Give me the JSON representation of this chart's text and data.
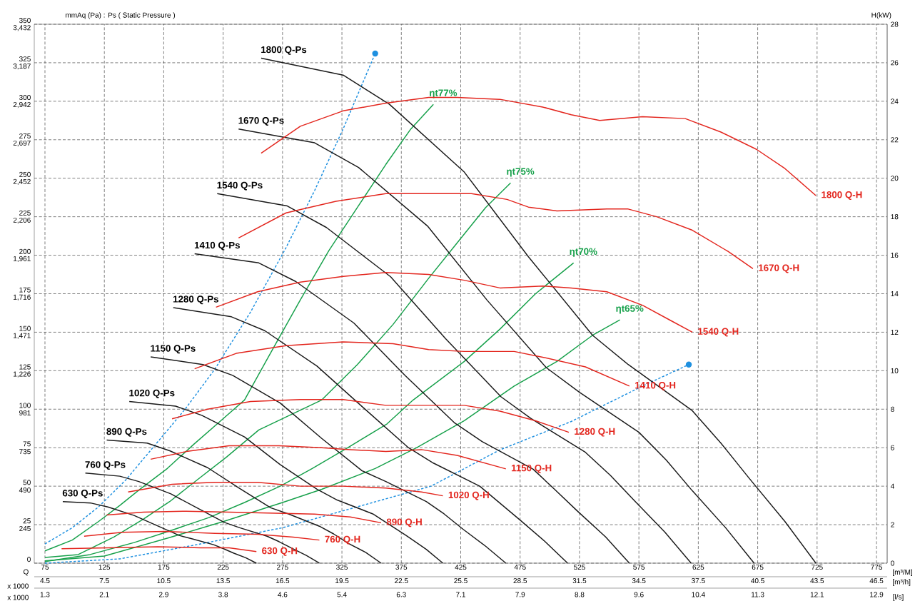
{
  "chart_data": {
    "type": "line",
    "ylabel": "mmAq (Pa) : Ps ( Static Pressure )",
    "y2label": "H(kW)",
    "xlabel": "[m³/M]",
    "x2label": "[m³/h]",
    "annotations": [
      "Q",
      "x 1000",
      "x 1000",
      "[l/s]",
      "1.3",
      "2.1",
      "2.9",
      "3.8",
      "4.6",
      "5.4",
      "6.3",
      "7.1",
      "7.9",
      "8.8",
      "9.6",
      "10.4",
      "11.3",
      "12.1",
      "12.9"
    ],
    "xlim": [
      66,
      784
    ],
    "xticks": [
      75,
      125,
      175,
      225,
      275,
      325,
      375,
      425,
      475,
      525,
      575,
      625,
      675,
      725,
      775
    ],
    "x2lim": [
      3.96,
      47.04
    ],
    "x2ticks": [
      4.5,
      7.5,
      10.5,
      13.5,
      16.5,
      19.5,
      22.5,
      25.5,
      28.5,
      31.5,
      34.5,
      37.5,
      40.5,
      43.5,
      46.5
    ],
    "ylim": [
      0,
      350
    ],
    "yticks": [
      0,
      25,
      50,
      75,
      100,
      125,
      150,
      175,
      200,
      225,
      250,
      275,
      300,
      325,
      350
    ],
    "y2lim": [
      0,
      28
    ],
    "y2ticks": [
      0,
      2,
      4,
      6,
      8,
      10,
      12,
      14,
      16,
      18,
      20,
      22,
      24,
      26,
      28
    ],
    "y3lim": [
      0,
      3432
    ],
    "y3ticks": [
      {
        "value": 245,
        "label": "245"
      },
      {
        "value": 490,
        "label": "490"
      },
      {
        "value": 735,
        "label": "735"
      },
      {
        "value": 981,
        "label": "981"
      },
      {
        "value": 1226,
        "label": "1,226"
      },
      {
        "value": 1471,
        "label": "1,471"
      },
      {
        "value": 1716,
        "label": "1,716"
      },
      {
        "value": 1961,
        "label": "1,961"
      },
      {
        "value": 2206,
        "label": "2,206"
      },
      {
        "value": 2452,
        "label": "2,452"
      },
      {
        "value": 2697,
        "label": "2,697"
      },
      {
        "value": 2942,
        "label": "2,942"
      },
      {
        "value": 3187,
        "label": "3,187"
      },
      {
        "value": 3432,
        "label": "3,432"
      }
    ],
    "grid": true,
    "series": [
      {
        "name": "ηt77%",
        "color": "#16a04a",
        "x": [
          75,
          98,
          120,
          138,
          155,
          178,
          200,
          223,
          243,
          266,
          290,
          314,
          338,
          362,
          383,
          402
        ],
        "values": [
          8,
          15,
          27,
          37.5,
          48,
          61.5,
          77,
          92.5,
          106,
          138,
          171,
          203,
          231,
          259,
          282,
          298
        ]
      },
      {
        "name": "ηt75%",
        "color": "#16a04a",
        "x": [
          75,
          103,
          133,
          158,
          180,
          203,
          228,
          255,
          308,
          338,
          368,
          398,
          422,
          446,
          467
        ],
        "values": [
          3.7,
          5.6,
          17,
          28.7,
          40,
          54,
          69,
          86.5,
          106,
          129,
          155,
          185,
          208,
          231,
          247
        ]
      },
      {
        "name": "ηt70%",
        "color": "#16a04a",
        "x": [
          75,
          113,
          150,
          178,
          213,
          243,
          273,
          300,
          330,
          363,
          385,
          428,
          458,
          488,
          520
        ],
        "values": [
          1,
          5.6,
          13.4,
          20.4,
          29.6,
          39.4,
          50,
          61.5,
          75,
          90.5,
          106,
          131,
          152,
          175,
          195
        ]
      },
      {
        "name": "ηt65%",
        "color": "#16a04a",
        "x": [
          75,
          125,
          178,
          225,
          275,
          308,
          353,
          388,
          428,
          470,
          506,
          536,
          559
        ],
        "values": [
          1.5,
          4.6,
          16.2,
          27,
          39.4,
          48,
          61.5,
          75,
          92.5,
          115,
          131,
          148,
          158
        ]
      },
      {
        "color": "#1e90e0",
        "line_style": "dashed",
        "x": [
          75,
          98,
          120,
          143,
          168,
          193,
          218,
          248,
          278,
          302,
          326,
          353
        ],
        "values": [
          12.5,
          23,
          36.5,
          54,
          77,
          100,
          126,
          163,
          205,
          242,
          282,
          331
        ]
      },
      {
        "type": "scatter",
        "color": "#1e90e0",
        "marker": "circle",
        "x": [
          353
        ],
        "values": [
          331
        ]
      },
      {
        "type": "scatter",
        "color": "#1e90e0",
        "marker": "circle",
        "x": [
          617
        ],
        "values": [
          129
        ]
      },
      {
        "color": "#1e90e0",
        "line_style": "dashed",
        "x": [
          75,
          138,
          200,
          275,
          338,
          400,
          458,
          518,
          578,
          617
        ],
        "values": [
          0,
          2.8,
          11.6,
          23,
          36.6,
          50,
          73.6,
          92,
          115,
          129
        ]
      },
      {
        "name": "1800 Q-H",
        "color": "#e3261e",
        "axis": "y2",
        "x": [
          257,
          290,
          326,
          362,
          398,
          422,
          458,
          494,
          518,
          542,
          578,
          614,
          644,
          674,
          698,
          724
        ],
        "values": [
          21.3,
          22.7,
          23.5,
          23.9,
          24.2,
          24.2,
          24.1,
          23.7,
          23.3,
          23.0,
          23.2,
          23.1,
          22.4,
          21.5,
          20.5,
          19.1
        ]
      },
      {
        "name": "1670 Q-H",
        "color": "#e3261e",
        "axis": "y2",
        "x": [
          238,
          278,
          320,
          362,
          398,
          434,
          464,
          482,
          506,
          548,
          566,
          590,
          620,
          650,
          671
        ],
        "values": [
          16.9,
          18.2,
          18.8,
          19.2,
          19.2,
          19.2,
          18.9,
          18.5,
          18.3,
          18.4,
          18.4,
          18.0,
          17.3,
          16.2,
          15.3
        ]
      },
      {
        "name": "1540 Q-H",
        "color": "#e3261e",
        "axis": "y2",
        "x": [
          219,
          254,
          290,
          326,
          362,
          398,
          428,
          458,
          494,
          518,
          548,
          578,
          602,
          620
        ],
        "values": [
          13.3,
          14.1,
          14.6,
          14.9,
          15.1,
          15.0,
          14.7,
          14.3,
          14.4,
          14.3,
          14.1,
          13.4,
          12.6,
          12.0
        ]
      },
      {
        "name": "1410 Q-H",
        "color": "#e3261e",
        "axis": "y2",
        "x": [
          201,
          236,
          278,
          326,
          368,
          398,
          428,
          470,
          494,
          530,
          567
        ],
        "values": [
          10.1,
          10.9,
          11.3,
          11.5,
          11.4,
          11.1,
          11.0,
          11.0,
          10.7,
          10.2,
          9.2
        ]
      },
      {
        "name": "1280 Q-H",
        "color": "#e3261e",
        "axis": "y2",
        "x": [
          182,
          212,
          248,
          290,
          326,
          362,
          398,
          428,
          458,
          488,
          516
        ],
        "values": [
          7.5,
          8.0,
          8.4,
          8.5,
          8.5,
          8.2,
          8.2,
          8.2,
          7.9,
          7.4,
          6.8
        ]
      },
      {
        "name": "1150 Q-H",
        "color": "#e3261e",
        "axis": "y2",
        "x": [
          164,
          194,
          230,
          272,
          308,
          332,
          362,
          392,
          422,
          463
        ],
        "values": [
          5.4,
          5.8,
          6.1,
          6.1,
          6.0,
          5.9,
          5.8,
          5.9,
          5.6,
          4.9
        ]
      },
      {
        "name": "1020 Q-H",
        "color": "#e3261e",
        "axis": "y2",
        "x": [
          145,
          182,
          218,
          254,
          290,
          326,
          362,
          392,
          410
        ],
        "values": [
          3.7,
          4.1,
          4.2,
          4.2,
          4.0,
          4.0,
          3.9,
          3.7,
          3.5
        ]
      },
      {
        "name": "890 Q-H",
        "color": "#e3261e",
        "axis": "y2",
        "x": [
          127,
          158,
          194,
          230,
          266,
          302,
          332,
          358
        ],
        "values": [
          2.5,
          2.65,
          2.7,
          2.65,
          2.6,
          2.55,
          2.4,
          2.1
        ]
      },
      {
        "name": "760 Q-H",
        "color": "#e3261e",
        "axis": "y2",
        "x": [
          108,
          140,
          176,
          218,
          254,
          284,
          306
        ],
        "values": [
          1.4,
          1.6,
          1.65,
          1.55,
          1.5,
          1.35,
          1.2
        ]
      },
      {
        "name": "630 Q-H",
        "color": "#e3261e",
        "axis": "y2",
        "x": [
          89,
          128,
          170,
          206,
          230,
          253
        ],
        "values": [
          0.75,
          0.8,
          0.85,
          0.8,
          0.8,
          0.6
        ]
      },
      {
        "name": "1800 Q-Ps",
        "color": "#1a1a1a",
        "x": [
          257,
          326,
          365,
          428,
          482,
          536,
          566,
          620,
          644,
          668,
          698,
          724
        ],
        "values": [
          328,
          317,
          298,
          254,
          199,
          148,
          129,
          99,
          78,
          55,
          27,
          0
        ]
      },
      {
        "name": "1670 Q-Ps",
        "color": "#1a1a1a",
        "x": [
          238,
          302,
          339,
          397,
          447,
          497,
          525,
          575,
          598,
          620,
          648,
          672
        ],
        "values": [
          282,
          273,
          257,
          219,
          171,
          127,
          111,
          85,
          67,
          47,
          23,
          0
        ]
      },
      {
        "name": "1540 Q-Ps",
        "color": "#1a1a1a",
        "x": [
          220,
          279,
          312,
          366,
          412,
          459,
          484,
          530,
          551,
          572,
          597,
          619
        ],
        "values": [
          240,
          232,
          218,
          186,
          146,
          108,
          94,
          72,
          57,
          40,
          20,
          0
        ]
      },
      {
        "name": "1410 Q-Ps",
        "color": "#1a1a1a",
        "x": [
          201,
          255,
          286,
          335,
          378,
          420,
          443,
          486,
          504,
          523,
          547,
          567
        ],
        "values": [
          201,
          195,
          183,
          156,
          122,
          91,
          79,
          61,
          48,
          34,
          17,
          0
        ]
      },
      {
        "name": "1280 Q-Ps",
        "color": "#1a1a1a",
        "x": [
          183,
          232,
          260,
          304,
          343,
          381,
          402,
          441,
          458,
          475,
          496,
          515
        ],
        "values": [
          166,
          160,
          151,
          128,
          101,
          75,
          65,
          50,
          39,
          28,
          14,
          0
        ]
      },
      {
        "name": "1150 Q-Ps",
        "color": "#1a1a1a",
        "x": [
          164,
          208,
          233,
          273,
          308,
          342,
          362,
          396,
          411,
          427,
          446,
          463
        ],
        "values": [
          134,
          129,
          122,
          104,
          81,
          60,
          53,
          40,
          32,
          22,
          11,
          0
        ]
      },
      {
        "name": "1020 Q-Ps",
        "color": "#1a1a1a",
        "x": [
          146,
          185,
          207,
          243,
          273,
          304,
          321,
          351,
          365,
          379,
          396,
          410
        ],
        "values": [
          105,
          102,
          96,
          82,
          64,
          48,
          41,
          32,
          25,
          18,
          9,
          0
        ]
      },
      {
        "name": "890 Q-Ps",
        "color": "#1a1a1a",
        "x": [
          127,
          161,
          180,
          212,
          238,
          265,
          280,
          306,
          318,
          330,
          345,
          358
        ],
        "values": [
          80,
          78,
          73,
          62,
          49,
          36,
          32,
          24,
          19,
          13,
          7,
          0
        ]
      },
      {
        "name": "760 Q-Ps",
        "color": "#1a1a1a",
        "x": [
          109,
          138,
          154,
          181,
          204,
          226,
          239,
          262,
          272,
          282,
          295,
          306
        ],
        "values": [
          58.5,
          56.5,
          53,
          45,
          35.5,
          26.5,
          23,
          17.5,
          14,
          10,
          5,
          0
        ]
      },
      {
        "name": "630 Q-Ps",
        "color": "#1a1a1a",
        "x": [
          90,
          114,
          128,
          150,
          169,
          188,
          198,
          217,
          225,
          234,
          244,
          253
        ],
        "values": [
          40,
          39,
          36.5,
          31,
          24.5,
          18,
          16,
          12,
          9.5,
          6.5,
          3.5,
          0
        ]
      }
    ]
  }
}
